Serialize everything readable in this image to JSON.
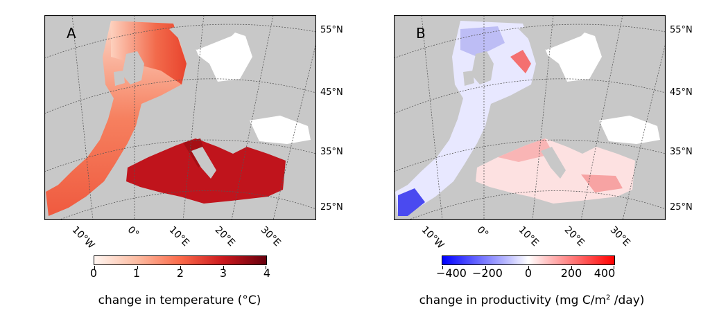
{
  "panels": {
    "a": {
      "letter": "A",
      "lat_labels": [
        "55°N",
        "45°N",
        "35°N",
        "25°N"
      ],
      "lon_labels": [
        "10°W",
        "0°",
        "10°E",
        "20°E",
        "30°E"
      ],
      "colorbar": {
        "ticks": [
          "0",
          "1",
          "2",
          "3",
          "4"
        ],
        "range": [
          0,
          4
        ],
        "label": "change in temperature (°C)",
        "colors": [
          "#fff5f0",
          "#fcbba1",
          "#fb6a4a",
          "#cb181d",
          "#67000d"
        ]
      }
    },
    "b": {
      "letter": "B",
      "lat_labels": [
        "55°N",
        "45°N",
        "35°N",
        "25°N"
      ],
      "lon_labels": [
        "10°W",
        "0°",
        "10°E",
        "20°E",
        "30°E"
      ],
      "colorbar": {
        "ticks": [
          "−400",
          "−200",
          "0",
          "200",
          "400"
        ],
        "range": [
          -400,
          400
        ],
        "label_prefix": "change in productivity (mg C/m",
        "label_sup": "2",
        "label_suffix": " /day)",
        "colors": [
          "#0000ff",
          "#ffffff",
          "#ff0000"
        ]
      }
    }
  },
  "colors": {
    "land": "#c8c8c8",
    "sea_outside_model": "#ffffff",
    "frame": "#000000"
  }
}
